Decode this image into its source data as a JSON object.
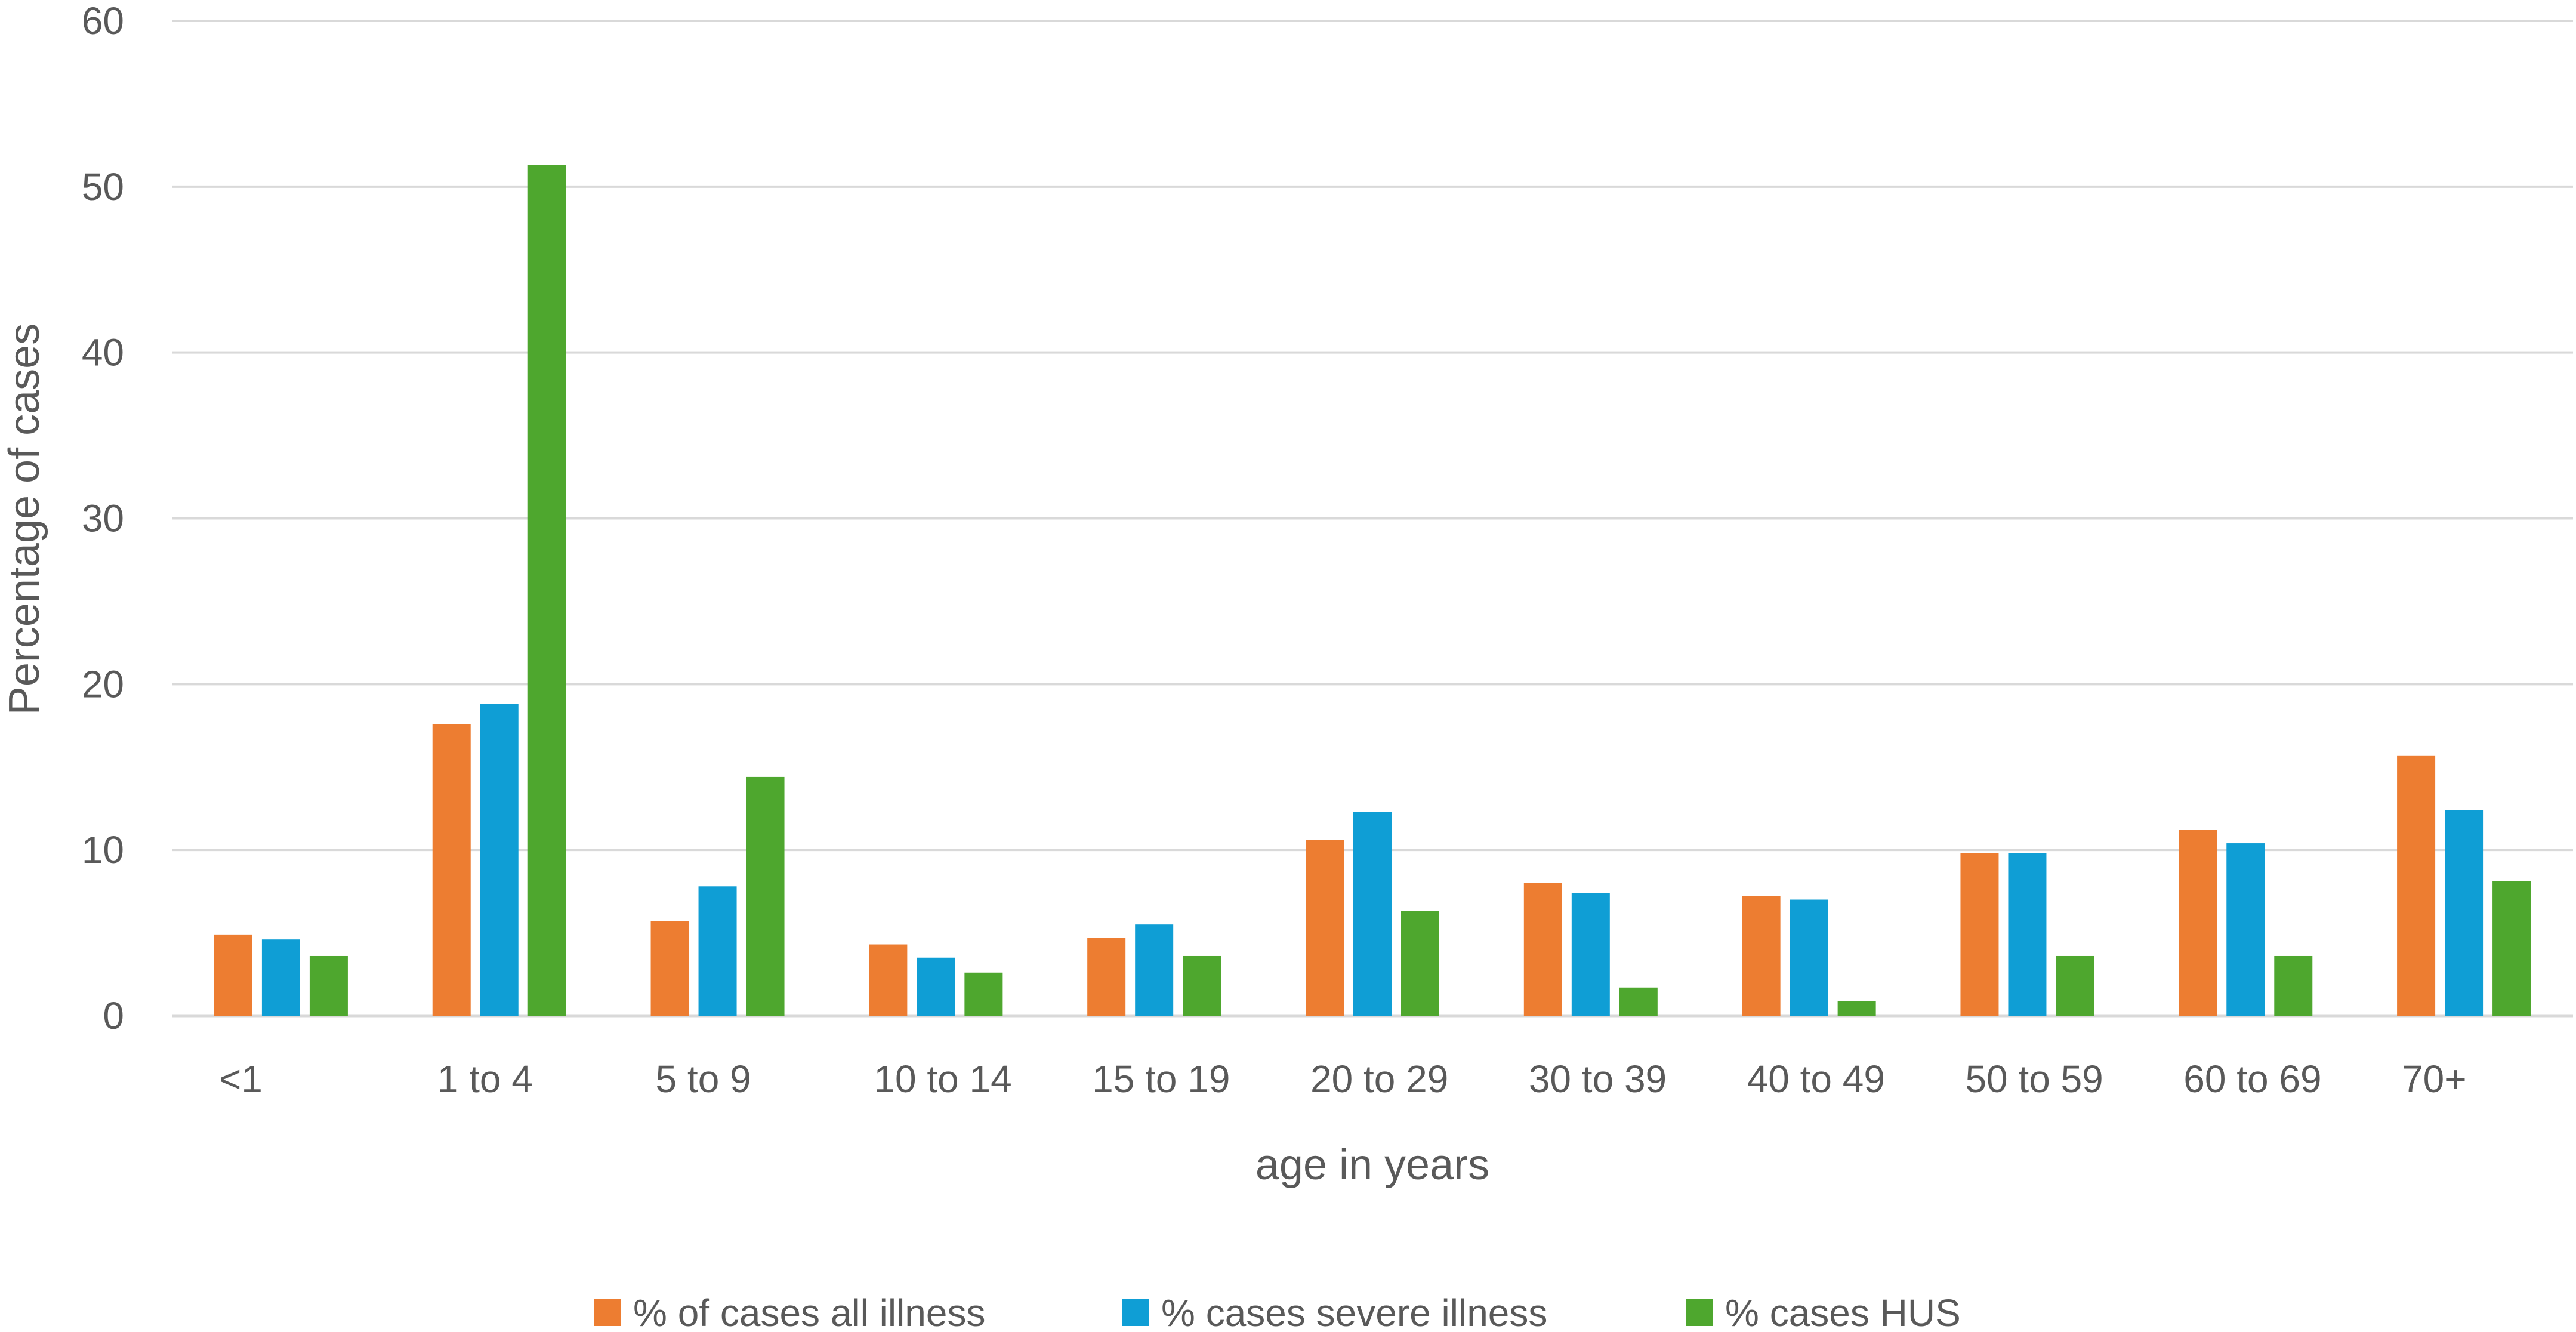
{
  "chart_data": {
    "type": "bar",
    "title": "",
    "xlabel": "age in years",
    "ylabel": "Percentage of cases",
    "ylim": [
      0,
      60
    ],
    "yticks": [
      0,
      10,
      20,
      30,
      40,
      50,
      60
    ],
    "ytick_labels": [
      "0",
      "10",
      "20",
      "30",
      "40",
      "50",
      "60"
    ],
    "grid": true,
    "legend_position": "bottom",
    "categories": [
      "<1",
      "1 to 4",
      "5 to 9",
      "10 to 14",
      "15 to 19",
      "20 to 29",
      "30 to 39",
      "40 to 49",
      "50 to 59",
      "60 to 69",
      "70+"
    ],
    "series": [
      {
        "name": "% of cases all illness",
        "color": "#ED7D31",
        "values": [
          4.9,
          17.6,
          5.7,
          4.3,
          4.7,
          10.6,
          8.0,
          7.2,
          9.8,
          11.2,
          15.7
        ]
      },
      {
        "name": "% cases severe illness",
        "color": "#0F9ED5",
        "values": [
          4.6,
          18.8,
          7.8,
          3.5,
          5.5,
          12.3,
          7.4,
          7.0,
          9.8,
          10.4,
          12.4
        ]
      },
      {
        "name": "% cases HUS",
        "color": "#4EA72E",
        "values": [
          3.6,
          51.3,
          14.4,
          2.6,
          3.6,
          6.3,
          1.7,
          0.9,
          3.6,
          3.6,
          8.1
        ]
      }
    ]
  }
}
